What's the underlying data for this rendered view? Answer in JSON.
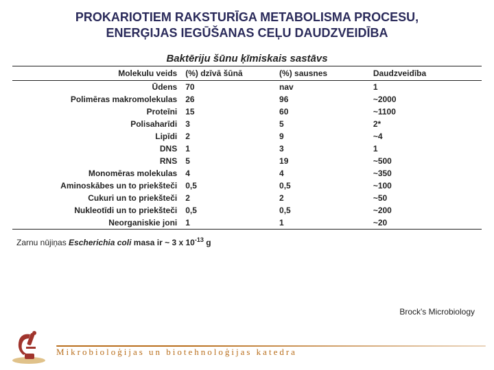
{
  "title_line1": "PROKARIOTIEM RAKSTURĪGA METABOLISMA PROCESU,",
  "title_line2": "ENERĢIJAS IEGŪŠANAS CEĻU DAUDZVEIDĪBA",
  "table_title": "Baktēriju šūnu ķīmiskais sastāvs",
  "columns": {
    "c1": "Molekulu veids",
    "c2": "(%) dzīvā šūnā",
    "c3": "(%) sausnes",
    "c4": "Daudzveidība"
  },
  "rows": [
    {
      "name": "Ūdens",
      "live": "70",
      "dry": "nav",
      "div": "1"
    },
    {
      "name": "Polimēras makromolekulas",
      "live": "26",
      "dry": "96",
      "div": "~2000"
    },
    {
      "name": "Proteīni",
      "live": "15",
      "dry": "60",
      "div": "~1100"
    },
    {
      "name": "Polisaharīdi",
      "live": "3",
      "dry": "5",
      "div": "2*"
    },
    {
      "name": "Lipīdi",
      "live": "2",
      "dry": "9",
      "div": "~4"
    },
    {
      "name": "DNS",
      "live": "1",
      "dry": "3",
      "div": "1"
    },
    {
      "name": "RNS",
      "live": "5",
      "dry": "19",
      "div": "~500"
    },
    {
      "name": "Monomēras molekulas",
      "live": "4",
      "dry": "4",
      "div": "~350"
    },
    {
      "name": "Aminoskābes un to priekšteči",
      "live": "0,5",
      "dry": "0,5",
      "div": "~100"
    },
    {
      "name": "Cukuri un to priekšteči",
      "live": "2",
      "dry": "2",
      "div": "~50"
    },
    {
      "name": "Nukleotīdi un to priekšteči",
      "live": "0,5",
      "dry": "0,5",
      "div": "~200"
    },
    {
      "name": "Neorganiskie joni",
      "live": "1",
      "dry": "1",
      "div": "~20"
    }
  ],
  "footnote_prefix": "Zarnu nūjiņas ",
  "footnote_species": "Escherichia coli",
  "footnote_mid": "  masa ir ~ 3 x 10",
  "footnote_exp": "-13",
  "footnote_suffix": " g",
  "source": "Brock's Microbiology",
  "department": "Mikrobioloģijas un biotehnoloģijas katedra",
  "colors": {
    "title": "#2a2a5a",
    "text": "#222222",
    "accent": "#b86d1a",
    "logo_red": "#a0342c",
    "logo_tan": "#e0c28a"
  }
}
